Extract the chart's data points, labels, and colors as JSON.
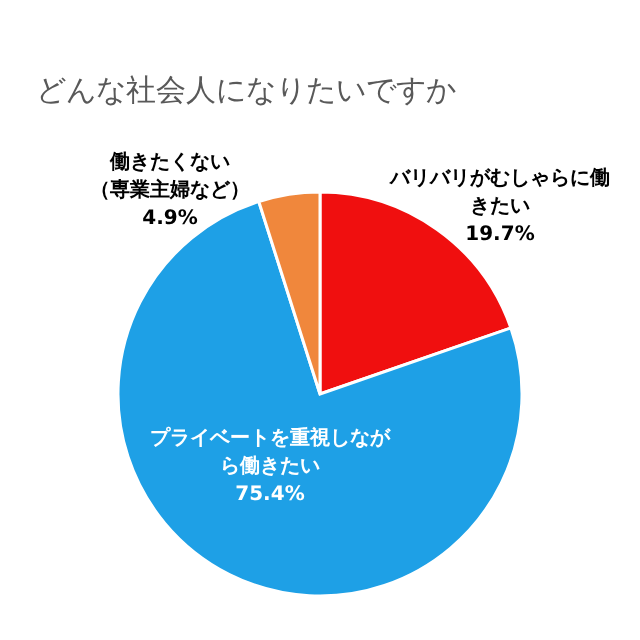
{
  "chart_data": {
    "type": "pie",
    "title": "どんな社会人になりたいですか",
    "categories": [
      "バリバリがむしゃらに働きたい",
      "プライベートを重視しながら働きたい",
      "働きたくない（専業主婦など）"
    ],
    "values": [
      19.7,
      75.4,
      4.9
    ],
    "value_labels": [
      "19.7%",
      "75.4%",
      "4.9%"
    ],
    "colors": [
      "#f00f0f",
      "#1ea0e6",
      "#f0873c"
    ]
  }
}
